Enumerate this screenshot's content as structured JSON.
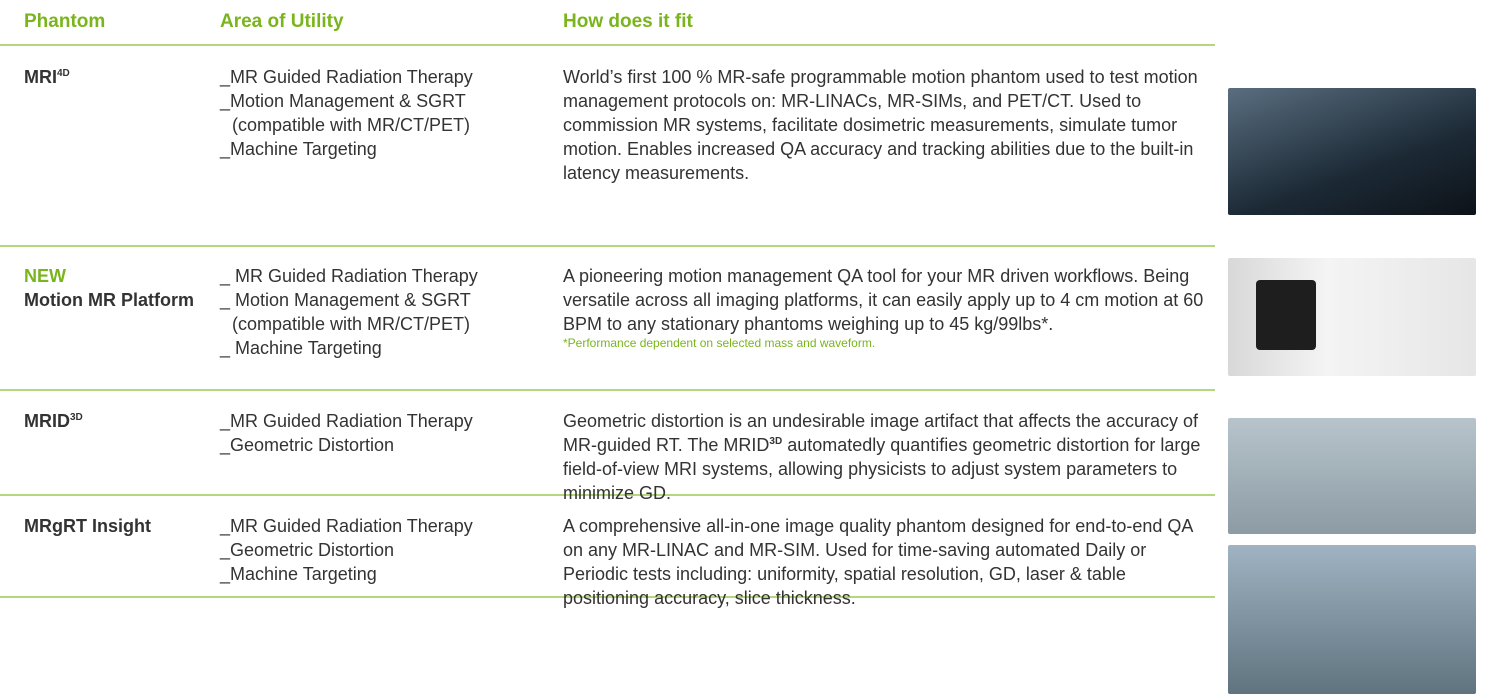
{
  "header": {
    "phantom": "Phantom",
    "utility": "Area of Utility",
    "fit": "How does it fit"
  },
  "rows": [
    {
      "name": "MRI",
      "name_sup": "4D",
      "utility": [
        "_MR Guided Radiation Therapy",
        "_Motion Management & SGRT",
        "(compatible with MR/CT/PET)",
        "_Machine Targeting"
      ],
      "description": [
        "World’s first 100 % MR-safe programmable motion phantom used to test motion management protocols on: MR-LINACs, MR-SIMs, and PET/CT. Used to commission MR systems, facilitate dosimetric measurements, simulate tumor motion. Enables increased QA accuracy and tracking abilities due to the built-in latency measurements."
      ]
    },
    {
      "badge": "NEW",
      "name": "Motion MR Platform",
      "utility": [
        "_ MR Guided Radiation Therapy",
        "_ Motion Management & SGRT",
        "(compatible with MR/CT/PET)",
        "_ Machine Targeting"
      ],
      "description": [
        "A pioneering motion management QA tool for your MR driven workflows. Being versatile across all imaging platforms, it can easily apply up to 4 cm motion at 60 BPM to any stationary phantoms weighing up to 45 kg/99lbs*."
      ],
      "footnote": "*Performance dependent on selected mass and waveform."
    },
    {
      "name": "MRID",
      "name_sup": "3D",
      "utility": [
        "_MR Guided Radiation Therapy",
        "_Geometric Distortion"
      ],
      "description": [
        "Geometric distortion is an undesirable image artifact that affects the accuracy of MR-guided RT. The MRID",
        "3D",
        " automatedly quantifies geometric distortion for large field-of-view MRI systems, allowing physicists to adjust system parameters to minimize GD."
      ]
    },
    {
      "name": "MRgRT Insight",
      "utility": [
        "_MR Guided Radiation Therapy",
        "_Geometric Distortion",
        "_Machine Targeting"
      ],
      "description": [
        "A comprehensive all-in-one image quality phantom designed for end-to-end QA on any MR-LINAC and MR-SIM. Used for time-saving automated Daily or Periodic tests including: uniformity, spatial resolution, GD, laser & table positioning accuracy, slice thickness."
      ]
    }
  ]
}
